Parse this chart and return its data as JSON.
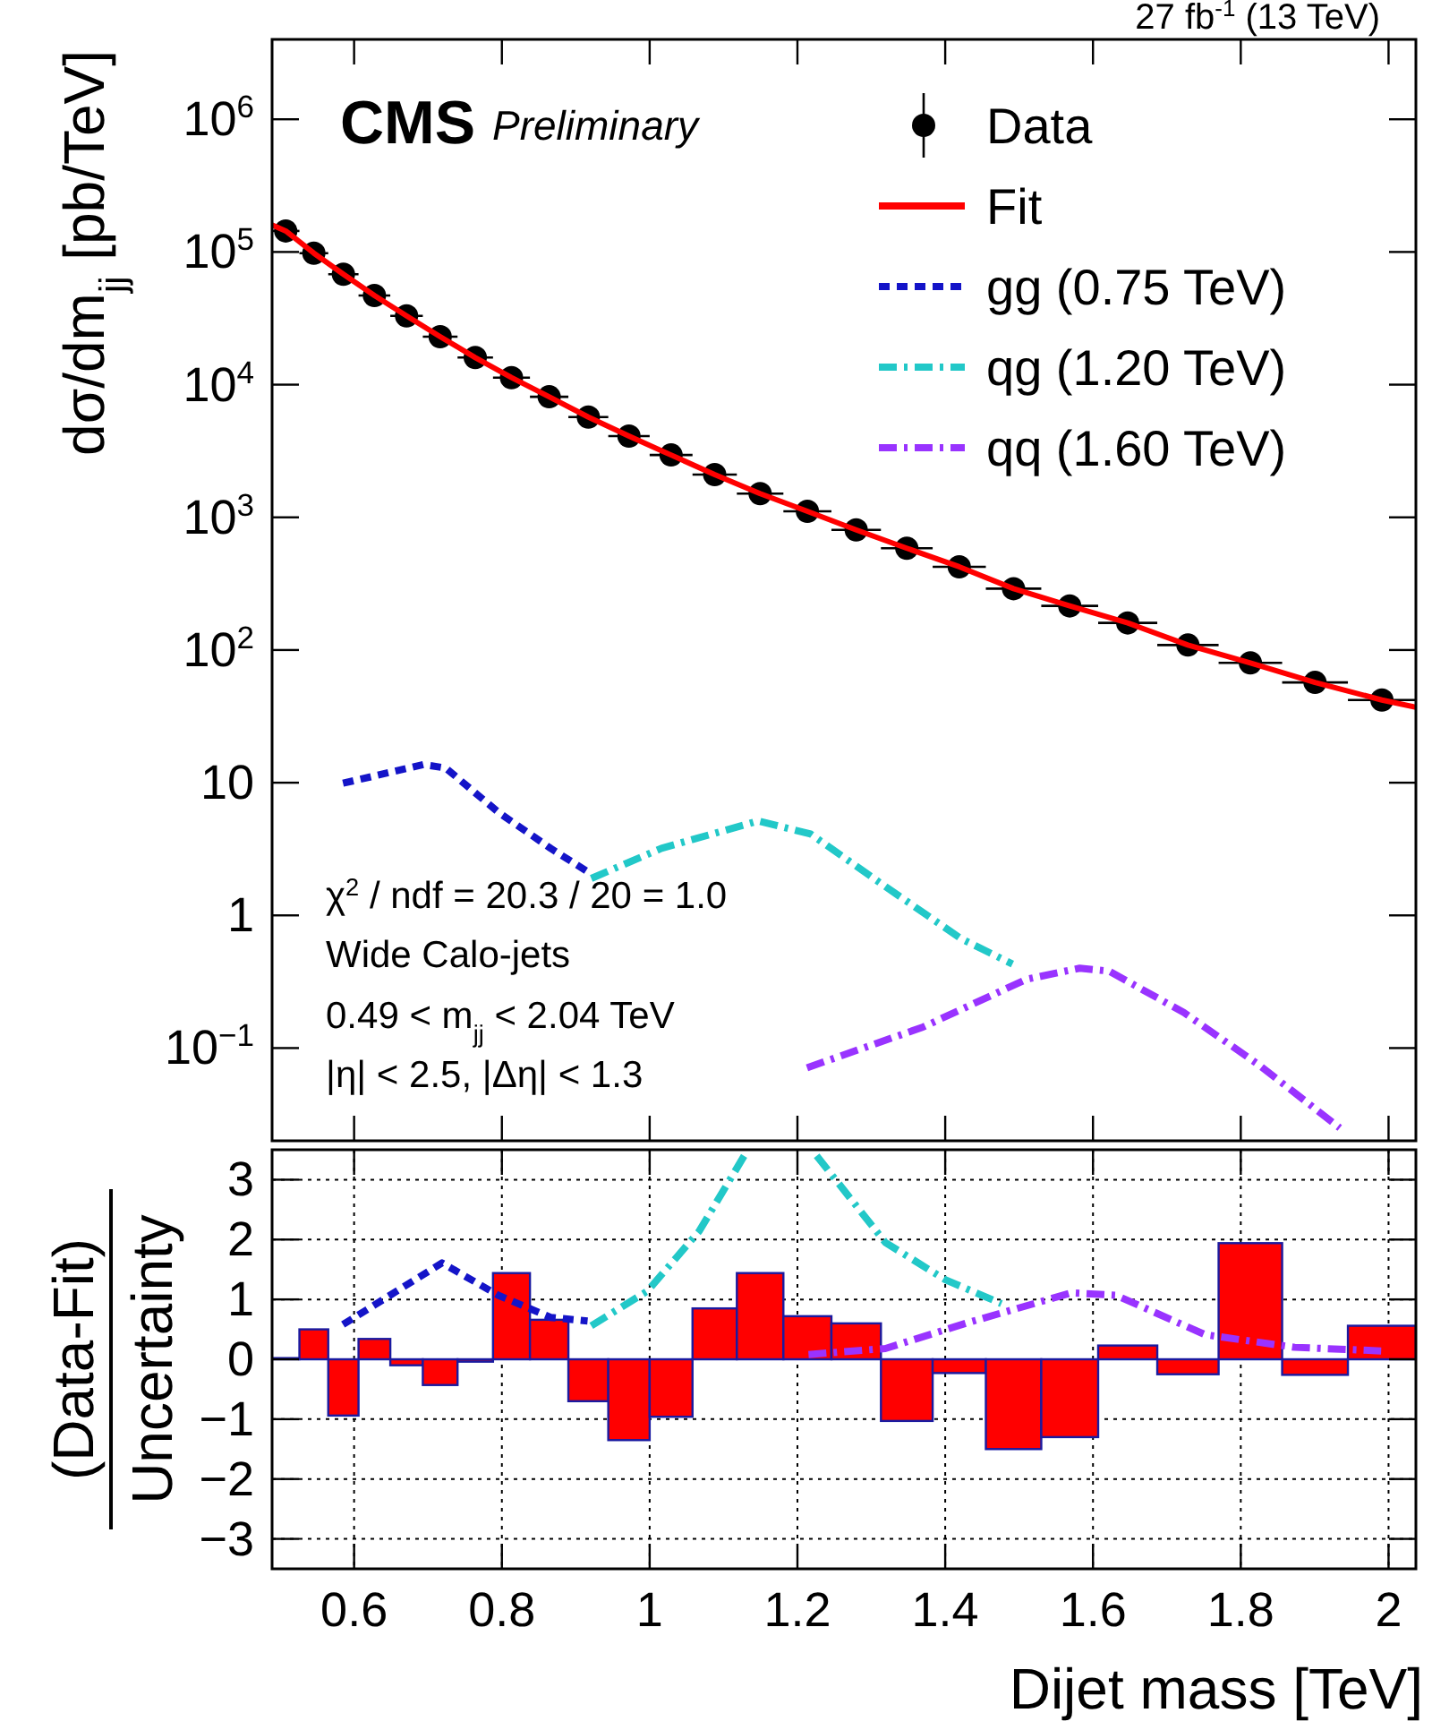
{
  "chart_data": [
    {
      "type": "line",
      "ylabel": "dσ/dm$_{jj}$ [pb/TeV]",
      "log": true,
      "legend": "top right",
      "tick_labels": "y",
      "xlim": [
        0.489,
        2.037
      ],
      "xticks": [
        0.6,
        0.8,
        1,
        1.2,
        1.4,
        1.6,
        1.8,
        2
      ],
      "ylim": [
        0.02,
        4000000
      ],
      "yticks": [
        {
          "value": 0.1,
          "label": "10$^{−1}$"
        },
        1,
        10,
        {
          "value": 100,
          "label": "10$^{2}$"
        },
        {
          "value": 1000,
          "label": "10$^{3}$"
        },
        {
          "value": 10000,
          "label": "10$^{4}$"
        },
        {
          "value": 100000,
          "label": "10$^{5}$"
        },
        {
          "value": 1000000,
          "label": "10$^{6}$"
        }
      ],
      "annotations": [
        "27 fb$^{-1}$ (13 TeV)",
        "CMS",
        "Preliminary",
        "χ$^{2}$ / ndf = 20.3 / 20 = 1.0",
        "Wide Calo-jets",
        "0.49 < m$_{jj}$ < 2.04 TeV",
        "|η| < 2.5, |Δη| < 1.3"
      ],
      "series": [
        {
          "name": "Data",
          "type": "scatter",
          "marker": "circle",
          "color": "#000000",
          "x": [
            0.5075,
            0.5455,
            0.5855,
            0.6275,
            0.671,
            0.7165,
            0.764,
            0.813,
            0.864,
            0.917,
            0.972,
            1.029,
            1.088,
            1.1495,
            1.2135,
            1.2795,
            1.348,
            1.419,
            1.4925,
            1.5685,
            1.647,
            1.7285,
            1.813,
            1.9005,
            1.991
          ],
          "values": [
            144000,
            98000,
            68000,
            47000,
            33000,
            23000,
            16000,
            11300,
            8100,
            5700,
            4100,
            2950,
            2100,
            1510,
            1110,
            805,
            585,
            424,
            290,
            215,
            160,
            109,
            80,
            57,
            42
          ],
          "xerrors": [
            0.0185,
            0.0195,
            0.0205,
            0.0215,
            0.022,
            0.0235,
            0.024,
            0.025,
            0.026,
            0.027,
            0.028,
            0.029,
            0.03,
            0.0315,
            0.0325,
            0.0335,
            0.035,
            0.036,
            0.0375,
            0.0385,
            0.04,
            0.0415,
            0.043,
            0.0445,
            0.046
          ]
        },
        {
          "name": "Fit",
          "line_style": "solid",
          "color": "#ff0000",
          "x": [
            0.489,
            0.5075,
            0.5455,
            0.5855,
            0.6275,
            0.671,
            0.7165,
            0.764,
            0.813,
            0.864,
            0.917,
            0.972,
            1.029,
            1.088,
            1.1495,
            1.2135,
            1.2795,
            1.348,
            1.419,
            1.4925,
            1.5685,
            1.647,
            1.7285,
            1.813,
            1.9005,
            1.991,
            2.037
          ],
          "values": [
            160000,
            144000,
            98000,
            68000,
            47000,
            33000,
            23000,
            16000,
            11300,
            8100,
            5700,
            4100,
            2950,
            2100,
            1510,
            1110,
            805,
            585,
            424,
            290,
            215,
            160,
            109,
            80,
            57,
            42,
            37
          ]
        },
        {
          "name": "gg (0.75 TeV)",
          "line_style": "dotted",
          "color": "#1414c8",
          "x": [
            0.585,
            0.694,
            0.724,
            0.795,
            0.866,
            0.921
          ],
          "values": [
            9.9,
            13.7,
            12.9,
            6.0,
            3.2,
            2.05
          ]
        },
        {
          "name": "qg (1.20 TeV)",
          "line_style": "dashed",
          "color": "#22c8c8",
          "x": [
            0.921,
            1.016,
            1.147,
            1.218,
            1.319,
            1.421,
            1.491
          ],
          "values": [
            1.9,
            3.2,
            5.15,
            4.1,
            1.65,
            0.67,
            0.43
          ]
        },
        {
          "name": "qq (1.60 TeV)",
          "line_style": "dashed",
          "color": "#9933ff",
          "x": [
            1.213,
            1.37,
            1.51,
            1.582,
            1.622,
            1.723,
            1.824,
            1.934
          ],
          "values": [
            0.071,
            0.144,
            0.33,
            0.4,
            0.38,
            0.185,
            0.075,
            0.025
          ]
        }
      ]
    },
    {
      "type": "histogram",
      "xlabel": "Dijet mass [TeV]",
      "ylabel": "(Data-Fit)\nUncertainty",
      "grid": true,
      "xlim": [
        0.489,
        2.037
      ],
      "xticks": [
        0.6,
        0.8,
        {
          "value": 1,
          "label": "1"
        },
        1.2,
        1.4,
        1.6,
        1.8,
        {
          "value": 2,
          "label": "2"
        }
      ],
      "ylim": [
        -3.5,
        3.5
      ],
      "yticks": [
        {
          "value": -3,
          "label": "−3"
        },
        {
          "value": -2,
          "label": "−2"
        },
        {
          "value": -1,
          "label": "−1"
        },
        0,
        1,
        2,
        3
      ],
      "series": [
        {
          "color": "#ff0000",
          "bins": [
            0.489,
            0.526,
            0.565,
            0.606,
            0.649,
            0.693,
            0.74,
            0.788,
            0.838,
            0.89,
            0.944,
            1.0,
            1.058,
            1.118,
            1.181,
            1.246,
            1.313,
            1.383,
            1.455,
            1.53,
            1.607,
            1.687,
            1.77,
            1.856,
            1.945,
            2.037
          ],
          "values": [
            0.02,
            0.5,
            -0.94,
            0.34,
            -0.1,
            -0.43,
            -0.04,
            1.44,
            0.66,
            -0.7,
            -1.35,
            -0.96,
            0.85,
            1.44,
            0.72,
            0.6,
            -1.03,
            -0.23,
            -1.5,
            -1.3,
            0.23,
            -0.25,
            1.94,
            -0.26,
            0.56
          ]
        },
        {
          "type": "line",
          "line_style": "dotted",
          "color": "#1414c8",
          "x": [
            0.585,
            0.719,
            0.795,
            0.866,
            0.916
          ],
          "values": [
            0.58,
            1.61,
            1.07,
            0.7,
            0.64
          ]
        },
        {
          "type": "line",
          "line_style": "dashed",
          "color": "#22c8c8",
          "x": [
            0.921,
            0.997,
            1.067,
            1.128,
            1.175,
            1.226,
            1.319,
            1.4,
            1.476
          ],
          "values": [
            0.56,
            1.14,
            2.14,
            3.4,
            null,
            3.4,
            1.95,
            1.33,
            0.93
          ]
        },
        {
          "type": "line",
          "line_style": "dashed",
          "color": "#9933ff",
          "x": [
            1.215,
            1.319,
            1.43,
            1.571,
            1.631,
            1.752,
            1.873,
            1.99
          ],
          "values": [
            0.08,
            0.18,
            0.61,
            1.11,
            1.07,
            0.41,
            0.2,
            0.14
          ]
        }
      ]
    }
  ]
}
